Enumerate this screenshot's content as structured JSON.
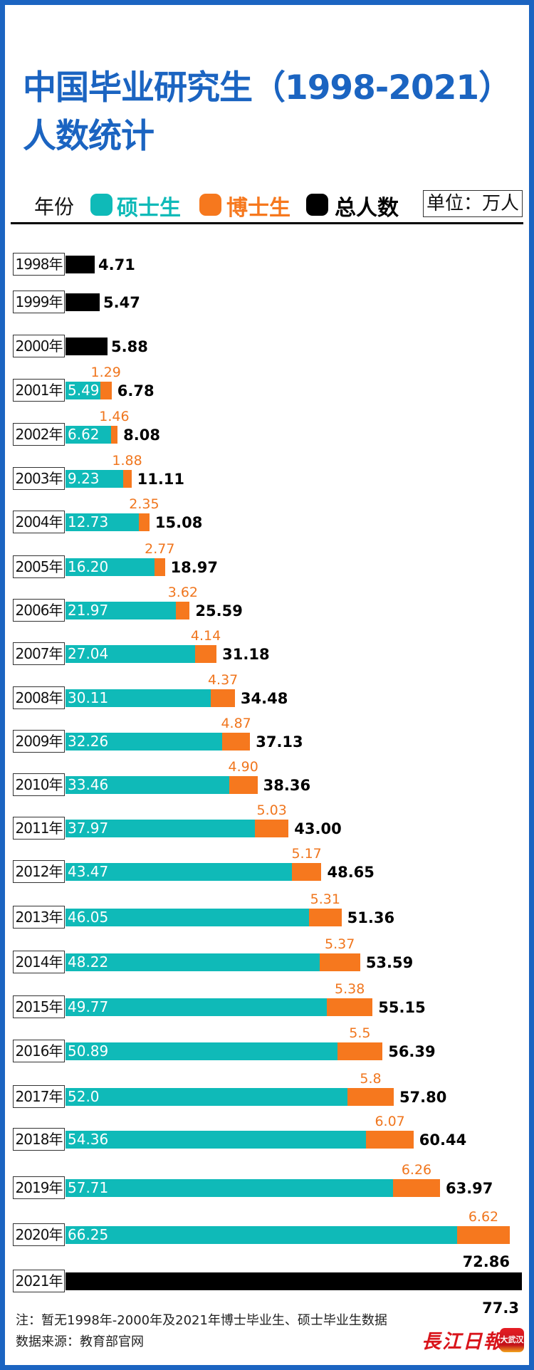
{
  "title": {
    "line1": "中国毕业研究生（1998-2021）",
    "line2": "人数统计"
  },
  "legend": {
    "year_label": "年份",
    "items": [
      {
        "name": "硕士生",
        "color": "#0fbab8"
      },
      {
        "name": "博士生",
        "color": "#f6781e"
      },
      {
        "name": "总人数",
        "color": "#000000"
      }
    ],
    "unit": "单位：万人"
  },
  "chart_data": {
    "type": "bar",
    "orientation": "horizontal-stacked",
    "title": "中国毕业研究生（1998-2021）人数统计",
    "unit": "万人",
    "categories": [
      "1998年",
      "1999年",
      "2000年",
      "2001年",
      "2002年",
      "2003年",
      "2004年",
      "2005年",
      "2006年",
      "2007年",
      "2008年",
      "2009年",
      "2010年",
      "2011年",
      "2012年",
      "2013年",
      "2014年",
      "2015年",
      "2016年",
      "2017年",
      "2018年",
      "2019年",
      "2020年",
      "2021年"
    ],
    "series": [
      {
        "name": "硕士生",
        "color": "#0fbab8",
        "values": [
          null,
          null,
          null,
          "5.49",
          "6.62",
          "9.23",
          "12.73",
          "16.20",
          "21.97",
          "27.04",
          "30.11",
          "32.26",
          "33.46",
          "37.97",
          "43.47",
          "46.05",
          "48.22",
          "49.77",
          "50.89",
          "52.0",
          "54.36",
          "57.71",
          "66.25",
          null
        ]
      },
      {
        "name": "博士生",
        "color": "#f6781e",
        "values": [
          null,
          null,
          null,
          "1.29",
          "1.46",
          "1.88",
          "2.35",
          "2.77",
          "3.62",
          "4.14",
          "4.37",
          "4.87",
          "4.90",
          "5.03",
          "5.17",
          "5.31",
          "5.37",
          "5.38",
          "5.5",
          "5.8",
          "6.07",
          "6.26",
          "6.62",
          null
        ]
      },
      {
        "name": "总人数",
        "color": "#000000",
        "values": [
          "4.71",
          "5.47",
          "5.88",
          "6.78",
          "8.08",
          "11.11",
          "15.08",
          "18.97",
          "25.59",
          "31.18",
          "34.48",
          "37.13",
          "38.36",
          "43.00",
          "48.65",
          "51.36",
          "53.59",
          "55.15",
          "56.39",
          "57.80",
          "60.44",
          "63.97",
          "72.86",
          "77.3"
        ]
      }
    ],
    "legend": "top",
    "grid": false
  },
  "footer": {
    "note": "注：暂无1998年-2000年及2021年博士毕业生、硕士毕业生数据",
    "source": "数据来源：教育部官网",
    "logo_text": "長江日報",
    "app_icon_text": "大武汉"
  }
}
